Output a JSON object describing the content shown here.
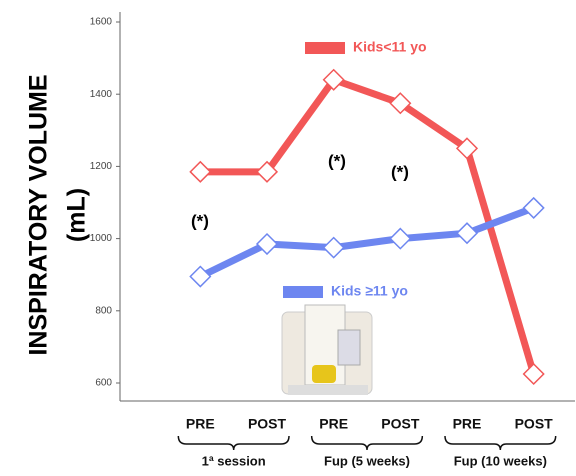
{
  "chart_data": {
    "type": "line",
    "ylabel": "INSPIRATORY VOLUME",
    "yunit": "(mL)",
    "categories": [
      "PRE",
      "POST",
      "PRE",
      "POST",
      "PRE",
      "POST"
    ],
    "groups": [
      "1ª session",
      "Fup (5 weeks)",
      "Fup (10 weeks)"
    ],
    "series": [
      {
        "name": "Kids<11 yo",
        "color": "#f25757",
        "values": [
          1185,
          1185,
          1440,
          1375,
          1250,
          625
        ]
      },
      {
        "name": "Kids ≥11 yo",
        "color": "#6d86f0",
        "values": [
          895,
          985,
          975,
          1000,
          1015,
          1085
        ]
      }
    ],
    "annotations": [
      "(*)",
      "(*)",
      "(*)"
    ],
    "ylim": [
      600,
      1600
    ],
    "yticks": [
      600,
      800,
      1000,
      1200,
      1400,
      1600
    ],
    "grid": false
  }
}
